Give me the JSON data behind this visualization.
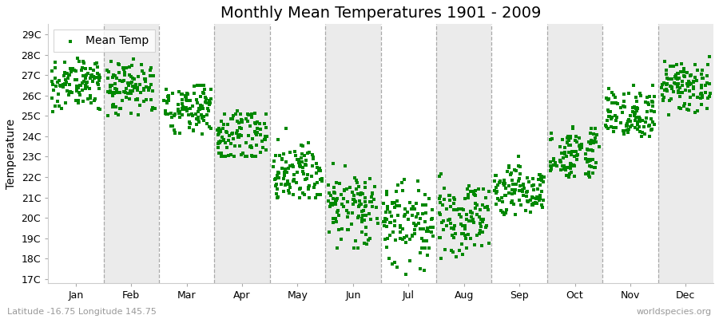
{
  "title": "Monthly Mean Temperatures 1901 - 2009",
  "ylabel": "Temperature",
  "xlabel_labels": [
    "Jan",
    "Feb",
    "Mar",
    "Apr",
    "May",
    "Jun",
    "Jul",
    "Aug",
    "Sep",
    "Oct",
    "Nov",
    "Dec"
  ],
  "ytick_labels": [
    "17C",
    "18C",
    "19C",
    "20C",
    "21C",
    "22C",
    "23C",
    "24C",
    "25C",
    "26C",
    "27C",
    "28C",
    "29C"
  ],
  "ytick_values": [
    17,
    18,
    19,
    20,
    21,
    22,
    23,
    24,
    25,
    26,
    27,
    28,
    29
  ],
  "ylim": [
    16.8,
    29.5
  ],
  "xlim": [
    0,
    12
  ],
  "legend_label": "Mean Temp",
  "marker_color": "#008800",
  "bg_color_light": "#ffffff",
  "bg_color_dark": "#ebebeb",
  "dash_color": "#aaaaaa",
  "footer_left": "Latitude -16.75 Longitude 145.75",
  "footer_right": "worldspecies.org",
  "monthly_means": [
    26.8,
    26.5,
    25.6,
    24.2,
    22.3,
    20.8,
    20.0,
    20.3,
    21.5,
    23.2,
    25.0,
    26.5
  ],
  "monthly_stds": [
    0.55,
    0.55,
    0.6,
    0.65,
    0.7,
    0.75,
    0.8,
    0.75,
    0.65,
    0.65,
    0.6,
    0.55
  ],
  "monthly_spread_low": [
    25.2,
    25.0,
    24.0,
    23.0,
    21.0,
    18.5,
    17.2,
    18.0,
    20.0,
    22.0,
    24.0,
    25.0
  ],
  "monthly_spread_high": [
    28.2,
    28.3,
    26.5,
    25.5,
    24.5,
    23.0,
    22.5,
    22.5,
    23.0,
    25.0,
    26.5,
    28.5
  ],
  "n_years": 109,
  "seed": 42,
  "title_fontsize": 14,
  "axis_label_fontsize": 10,
  "tick_fontsize": 9,
  "footer_fontsize": 8,
  "marker_size": 5
}
